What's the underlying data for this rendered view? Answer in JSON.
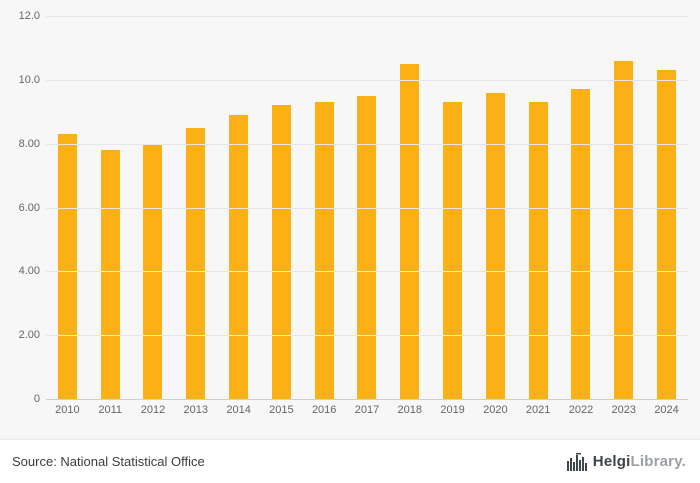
{
  "chart_data": {
    "type": "bar",
    "categories": [
      "2010",
      "2011",
      "2012",
      "2013",
      "2014",
      "2015",
      "2016",
      "2017",
      "2018",
      "2019",
      "2020",
      "2021",
      "2022",
      "2023",
      "2024"
    ],
    "values": [
      8.3,
      7.8,
      8.0,
      8.5,
      8.9,
      9.2,
      9.3,
      9.5,
      10.5,
      9.3,
      9.6,
      9.3,
      9.7,
      10.6,
      10.3
    ],
    "title": "",
    "xlabel": "",
    "ylabel": "",
    "ylim": [
      0,
      12
    ],
    "grid": true,
    "legend": false,
    "bar_color": "#fbb116",
    "yticks": [
      {
        "value": 12,
        "label": "12.0"
      },
      {
        "value": 10,
        "label": "10.0"
      },
      {
        "value": 8,
        "label": "8.00"
      },
      {
        "value": 6,
        "label": "6.00"
      },
      {
        "value": 4,
        "label": "4.00"
      },
      {
        "value": 2,
        "label": "2.00"
      },
      {
        "value": 0,
        "label": "0"
      }
    ]
  },
  "footer": {
    "source": "Source: National Statistical Office",
    "logo_bold": "Helgi",
    "logo_light": "Library."
  }
}
